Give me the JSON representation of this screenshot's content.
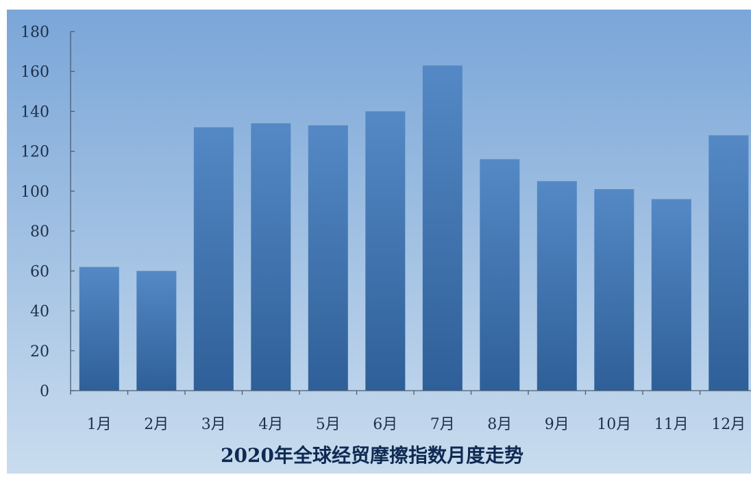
{
  "chart_data": {
    "type": "bar",
    "title": "2020年全球经贸摩擦指数月度走势",
    "xlabel": "",
    "ylabel": "",
    "categories": [
      "1月",
      "2月",
      "3月",
      "4月",
      "5月",
      "6月",
      "7月",
      "8月",
      "9月",
      "10月",
      "11月",
      "12月"
    ],
    "values": [
      62,
      60,
      132,
      134,
      133,
      140,
      163,
      116,
      105,
      101,
      96,
      128
    ],
    "ylim": [
      0,
      180
    ],
    "yticks": [
      "0",
      "20",
      "40",
      "60",
      "80",
      "100",
      "120",
      "140",
      "160",
      "180"
    ],
    "grid": false,
    "legend": "none",
    "colors": {
      "background_top": "#7aa6d8",
      "background_bottom": "#c9dcee",
      "bar_top": "#5489c5",
      "bar_bottom": "#2f5f98"
    }
  }
}
